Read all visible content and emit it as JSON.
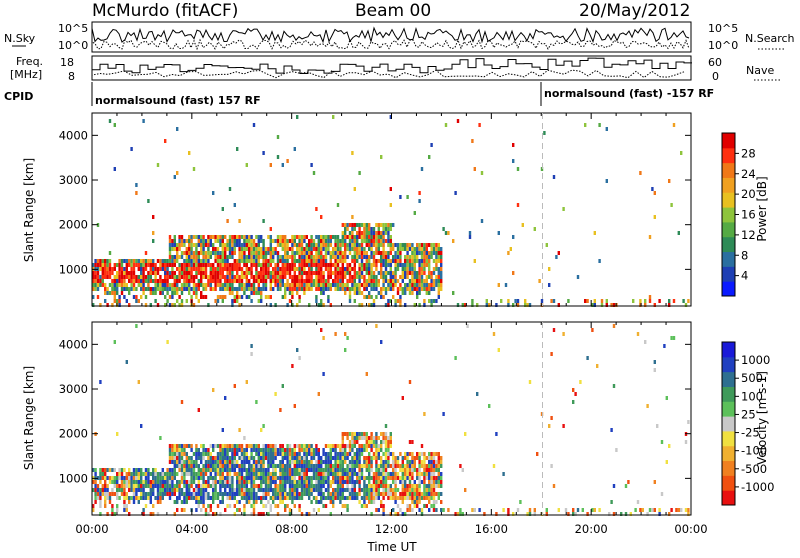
{
  "header": {
    "station": "McMurdo (fitACF)",
    "beam": "Beam 00",
    "date": "20/May/2012"
  },
  "sky": {
    "left_label": "N.Sky",
    "right_label": "N.Search",
    "left_top": "10^5",
    "left_bottom": "10^0",
    "right_top": "10^5",
    "right_bottom": "10^0"
  },
  "freq": {
    "label_line1": "Freq.",
    "label_line2": "[MHz]",
    "left_top": "18",
    "left_bottom": "8",
    "right_label": "Nave",
    "right_top": "60",
    "right_bottom": "0"
  },
  "cpid": {
    "label": "CPID",
    "seg1": "normalsound (fast) 157 RF",
    "seg2": "normalsound (fast) -157 RF"
  },
  "chart_data": [
    {
      "type": "heatmap",
      "parameter": "power",
      "ylabel": "Slant Range [km]",
      "xlabel": "",
      "y_ticks": [
        1000,
        2000,
        3000,
        4000
      ],
      "ylim": [
        180,
        4500
      ],
      "x_ticks": [
        "00:00",
        "04:00",
        "08:00",
        "12:00",
        "16:00",
        "20:00",
        "00:00"
      ],
      "xlim_hours": [
        0,
        24
      ],
      "colorbar": {
        "label": "Power [dB]",
        "ticks": [
          "4",
          "8",
          "12",
          "16",
          "20",
          "24",
          "28"
        ],
        "colors": [
          "#0a1aff",
          "#1e3fb4",
          "#2a6fa0",
          "#2e8b57",
          "#55aa44",
          "#8ec43c",
          "#e8c020",
          "#f0a020",
          "#f07818",
          "#ff3010",
          "#e00000"
        ]
      }
    },
    {
      "type": "heatmap",
      "parameter": "velocity",
      "ylabel": "Slant Range [km]",
      "xlabel": "Time UT",
      "y_ticks": [
        1000,
        2000,
        3000,
        4000
      ],
      "ylim": [
        180,
        4500
      ],
      "x_ticks": [
        "00:00",
        "04:00",
        "08:00",
        "12:00",
        "16:00",
        "20:00",
        "00:00"
      ],
      "xlim_hours": [
        0,
        24
      ],
      "colorbar": {
        "label": "Velocity [m s-1]",
        "ticks": [
          "1000",
          "500",
          "100",
          "25",
          "-25",
          "-100",
          "-500",
          "-1000"
        ],
        "colors": [
          "#1a1ad8",
          "#2040c0",
          "#2e6f90",
          "#3f9a5a",
          "#5cc05a",
          "#c8c8c8",
          "#f0e040",
          "#f0b030",
          "#f08020",
          "#f05010",
          "#e81010"
        ]
      }
    }
  ]
}
